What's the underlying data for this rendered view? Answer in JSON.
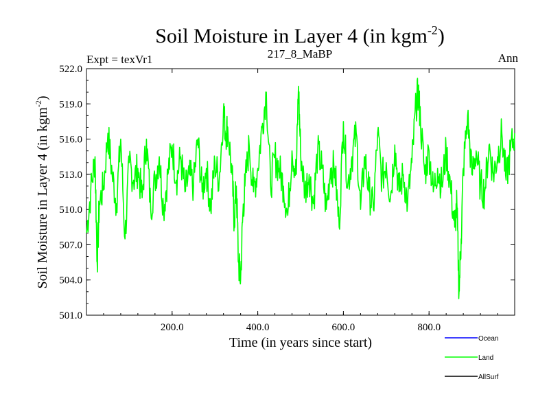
{
  "chart_data": {
    "type": "line",
    "title": "Soil Moisture in Layer 4 (in kgm",
    "title_sup": "-2",
    "title_close": ")",
    "left_subtitle": "Expt = texVr1",
    "center_subtitle": "217_8_MaBP",
    "right_subtitle": "Ann",
    "xlabel": "Time (in years since start)",
    "ylabel": "Soil Moisture in Layer 4 (in kgm",
    "ylabel_sup": "-2",
    "ylabel_close": ")",
    "xlim": [
      0,
      1000
    ],
    "ylim": [
      501.0,
      522.0
    ],
    "x_ticks": [
      {
        "value": 200,
        "label": "200.0"
      },
      {
        "value": 400,
        "label": "400.0"
      },
      {
        "value": 600,
        "label": "600.0"
      },
      {
        "value": 800,
        "label": "800.0"
      }
    ],
    "y_ticks": [
      {
        "value": 501.0,
        "label": "501.0"
      },
      {
        "value": 504.0,
        "label": "504.0"
      },
      {
        "value": 507.0,
        "label": "507.0"
      },
      {
        "value": 510.0,
        "label": "510.0"
      },
      {
        "value": 513.0,
        "label": "513.0"
      },
      {
        "value": 516.0,
        "label": "516.0"
      },
      {
        "value": 519.0,
        "label": "519.0"
      },
      {
        "value": 522.0,
        "label": "522.0"
      }
    ],
    "legend": [
      {
        "name": "Ocean",
        "color": "#0000ff"
      },
      {
        "name": "Land",
        "color": "#00ff00"
      },
      {
        "name": "AllSurf",
        "color": "#000000"
      }
    ],
    "series": [
      {
        "name": "Land",
        "color": "#00ff00",
        "x": [
          0,
          10,
          20,
          25,
          30,
          40,
          50,
          60,
          70,
          80,
          90,
          100,
          110,
          120,
          130,
          140,
          150,
          160,
          170,
          180,
          190,
          200,
          210,
          220,
          230,
          240,
          250,
          260,
          270,
          280,
          290,
          300,
          310,
          320,
          325,
          330,
          340,
          345,
          350,
          355,
          360,
          365,
          370,
          380,
          390,
          400,
          410,
          420,
          430,
          440,
          450,
          460,
          470,
          480,
          490,
          495,
          500,
          510,
          520,
          530,
          540,
          550,
          560,
          570,
          580,
          590,
          600,
          610,
          620,
          630,
          640,
          650,
          660,
          670,
          680,
          690,
          700,
          710,
          720,
          730,
          740,
          750,
          760,
          770,
          775,
          780,
          790,
          800,
          810,
          820,
          830,
          840,
          850,
          860,
          865,
          870,
          875,
          880,
          890,
          900,
          910,
          920,
          930,
          940,
          950,
          960,
          970,
          980,
          990,
          1000
        ],
        "y": [
          508.0,
          511.5,
          514.5,
          505.5,
          510.5,
          512.0,
          516.5,
          513.0,
          510.5,
          516.0,
          507.5,
          514.0,
          512.5,
          513.5,
          511.0,
          516.0,
          510.0,
          512.5,
          514.5,
          510.0,
          513.0,
          515.5,
          512.5,
          514.5,
          511.5,
          513.0,
          512.0,
          516.0,
          511.5,
          513.5,
          510.0,
          514.0,
          512.5,
          518.5,
          516.5,
          517.0,
          513.0,
          509.0,
          512.0,
          505.5,
          504.0,
          509.5,
          512.0,
          515.5,
          511.5,
          513.5,
          517.0,
          520.0,
          512.0,
          514.5,
          513.5,
          512.0,
          509.5,
          515.0,
          513.0,
          520.5,
          515.0,
          511.5,
          513.0,
          510.5,
          515.0,
          513.5,
          510.0,
          513.5,
          513.5,
          508.5,
          517.5,
          512.0,
          514.5,
          516.5,
          510.0,
          514.5,
          511.5,
          510.0,
          516.5,
          512.5,
          514.0,
          511.0,
          515.5,
          511.5,
          513.0,
          510.5,
          514.0,
          519.0,
          520.0,
          517.5,
          513.0,
          515.0,
          511.5,
          513.5,
          512.0,
          515.0,
          512.0,
          508.5,
          510.5,
          503.0,
          507.5,
          513.5,
          518.0,
          513.0,
          515.0,
          512.0,
          511.5,
          515.5,
          513.0,
          514.5,
          516.5,
          512.5,
          515.0,
          516.5
        ]
      }
    ]
  }
}
